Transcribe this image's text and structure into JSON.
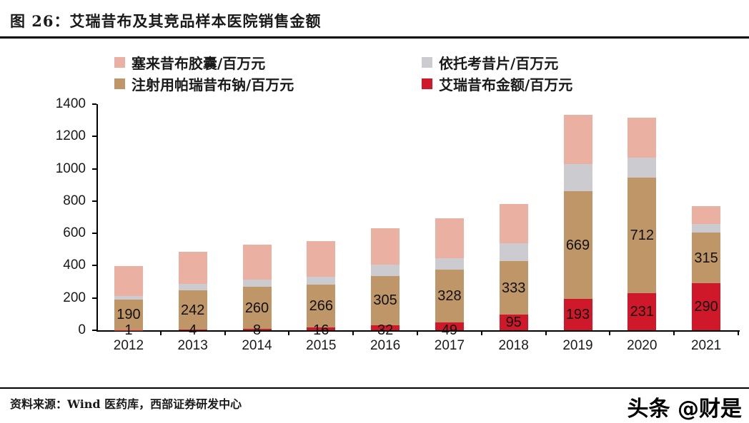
{
  "header": {
    "title": "图 26：艾瑞昔布及其竞品样本医院销售金额"
  },
  "footer": {
    "source": "资料来源：Wind 医药库，西部证券研发中心",
    "watermark": "头条 @财是"
  },
  "chart_data": {
    "type": "bar",
    "stacked": true,
    "title": "艾瑞昔布及其竞品样本医院销售金额",
    "categories": [
      "2012",
      "2013",
      "2014",
      "2015",
      "2016",
      "2017",
      "2018",
      "2019",
      "2020",
      "2021"
    ],
    "series": [
      {
        "key": "imrecoxib",
        "name": "艾瑞昔布金额/百万元",
        "color": "#d0182b",
        "values": [
          1,
          4,
          8,
          16,
          32,
          49,
          95,
          193,
          231,
          290
        ],
        "labeled": true
      },
      {
        "key": "parecoxib",
        "name": "注射用帕瑞昔布钠/百万元",
        "color": "#bf9668",
        "values": [
          190,
          242,
          260,
          266,
          305,
          328,
          333,
          669,
          712,
          315
        ],
        "labeled": true
      },
      {
        "key": "etoricoxib",
        "name": "依托考昔片/百万元",
        "color": "#ccccd0",
        "values": [
          20,
          40,
          45,
          50,
          70,
          70,
          110,
          165,
          125,
          55
        ],
        "labeled": false,
        "values_estimated": true
      },
      {
        "key": "celecoxib",
        "name": "塞来昔布胶囊/百万元",
        "color": "#eab1a2",
        "values": [
          185,
          200,
          215,
          220,
          225,
          245,
          245,
          305,
          250,
          110
        ],
        "labeled": false,
        "values_estimated": true
      }
    ],
    "ylabel": "",
    "xlabel": "",
    "ylim": [
      0,
      1400
    ],
    "ytick_step": 200,
    "yticks": [
      "0",
      "200",
      "400",
      "600",
      "800",
      "1000",
      "1200",
      "1400"
    ],
    "grid": false,
    "legend_position": "top"
  }
}
